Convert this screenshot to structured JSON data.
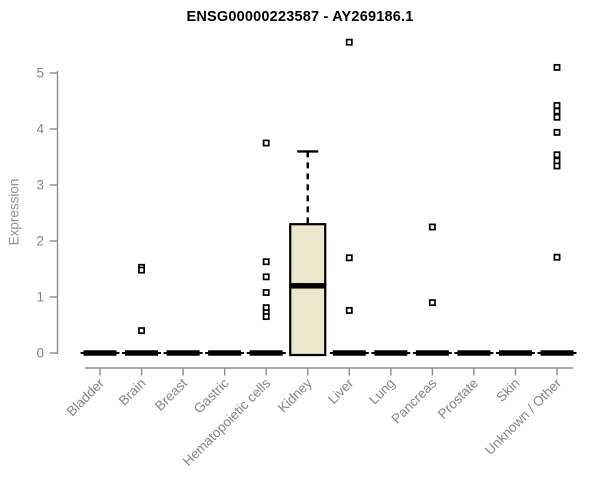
{
  "chart_data": {
    "type": "boxplot",
    "title": "ENSG00000223587 - AY269186.1",
    "ylabel": "Expression",
    "xlabel": "",
    "ylim": [
      0,
      5
    ],
    "yticks": [
      0,
      1,
      2,
      3,
      4,
      5
    ],
    "grid": false,
    "legend": "none",
    "categories": [
      "Bladder",
      "Brain",
      "Breast",
      "Gastric",
      "Hematopoietic cells",
      "Kidney",
      "Liver",
      "Lung",
      "Pancreas",
      "Prostate",
      "Skin",
      "Unknown / Other"
    ],
    "boxes": [
      {
        "category": "Bladder",
        "q1": 0,
        "median": 0,
        "q3": 0,
        "whisker_low": 0,
        "whisker_high": 0,
        "outliers": []
      },
      {
        "category": "Brain",
        "q1": 0,
        "median": 0,
        "q3": 0,
        "whisker_low": 0,
        "whisker_high": 0,
        "outliers": [
          1.53,
          1.48,
          0.4
        ]
      },
      {
        "category": "Breast",
        "q1": 0,
        "median": 0,
        "q3": 0,
        "whisker_low": 0,
        "whisker_high": 0,
        "outliers": []
      },
      {
        "category": "Gastric",
        "q1": 0,
        "median": 0,
        "q3": 0,
        "whisker_low": 0,
        "whisker_high": 0,
        "outliers": []
      },
      {
        "category": "Hematopoietic cells",
        "q1": 0,
        "median": 0,
        "q3": 0,
        "whisker_low": 0,
        "whisker_high": 0,
        "outliers": [
          3.75,
          1.63,
          1.36,
          1.08,
          0.81,
          0.72,
          0.65
        ]
      },
      {
        "category": "Kidney",
        "q1": 0,
        "median": 1.2,
        "q3": 2.3,
        "whisker_low": 0,
        "whisker_high": 3.6,
        "outliers": []
      },
      {
        "category": "Liver",
        "q1": 0,
        "median": 0,
        "q3": 0,
        "whisker_low": 0,
        "whisker_high": 0,
        "outliers": [
          5.55,
          1.7,
          0.76
        ]
      },
      {
        "category": "Lung",
        "q1": 0,
        "median": 0,
        "q3": 0,
        "whisker_low": 0,
        "whisker_high": 0,
        "outliers": []
      },
      {
        "category": "Pancreas",
        "q1": 0,
        "median": 0,
        "q3": 0,
        "whisker_low": 0,
        "whisker_high": 0,
        "outliers": [
          2.25,
          0.9
        ]
      },
      {
        "category": "Prostate",
        "q1": 0,
        "median": 0,
        "q3": 0,
        "whisker_low": 0,
        "whisker_high": 0,
        "outliers": []
      },
      {
        "category": "Skin",
        "q1": 0,
        "median": 0,
        "q3": 0,
        "whisker_low": 0,
        "whisker_high": 0,
        "outliers": []
      },
      {
        "category": "Unknown / Other",
        "q1": 0,
        "median": 0,
        "q3": 0,
        "whisker_low": 0,
        "whisker_high": 0,
        "outliers": [
          5.1,
          4.42,
          4.32,
          4.21,
          3.94,
          3.54,
          3.43,
          3.34,
          1.71
        ]
      }
    ],
    "colors": {
      "box_fill": "#EDE7CE",
      "box_border": "#000000",
      "median": "#000000",
      "point_stroke": "#000000",
      "point_fill": "#FFFFFF",
      "axis": "#8A8A8A",
      "tick_label": "#848484",
      "title": "#000000"
    }
  }
}
